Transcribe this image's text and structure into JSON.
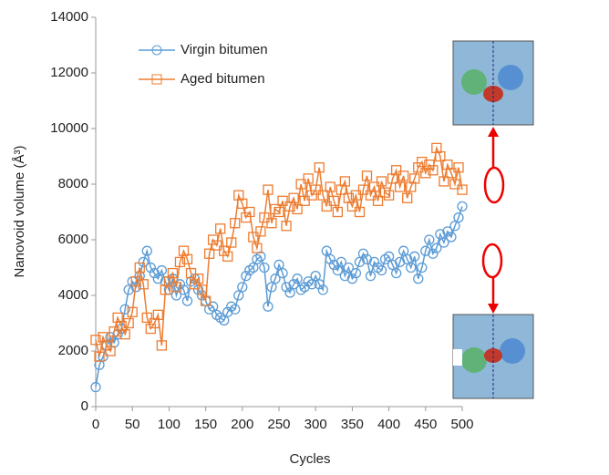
{
  "chart_data": {
    "type": "line",
    "xlabel": "Cycles",
    "ylabel": "Nanovoid volume (Å³)",
    "x": [
      0,
      5,
      10,
      15,
      20,
      25,
      30,
      35,
      40,
      45,
      50,
      55,
      60,
      65,
      70,
      75,
      80,
      85,
      90,
      95,
      100,
      105,
      110,
      115,
      120,
      125,
      130,
      135,
      140,
      145,
      150,
      155,
      160,
      165,
      170,
      175,
      180,
      185,
      190,
      195,
      200,
      205,
      210,
      215,
      220,
      225,
      230,
      235,
      240,
      245,
      250,
      255,
      260,
      265,
      270,
      275,
      280,
      285,
      290,
      295,
      300,
      305,
      310,
      315,
      320,
      325,
      330,
      335,
      340,
      345,
      350,
      355,
      360,
      365,
      370,
      375,
      380,
      385,
      390,
      395,
      400,
      405,
      410,
      415,
      420,
      425,
      430,
      435,
      440,
      445,
      450,
      455,
      460,
      465,
      470,
      475,
      480,
      485,
      490,
      495,
      500
    ],
    "series": [
      {
        "name": "Virgin bitumen",
        "color": "#5b9bd5",
        "marker": "circle",
        "values": [
          700,
          1500,
          1800,
          2200,
          2500,
          2300,
          2600,
          2800,
          3500,
          4200,
          4500,
          4300,
          4700,
          5200,
          5600,
          5000,
          4800,
          4600,
          4900,
          4500,
          4200,
          4600,
          4000,
          4400,
          4200,
          3800,
          4500,
          4600,
          4200,
          4000,
          3800,
          3500,
          3600,
          3300,
          3200,
          3100,
          3400,
          3600,
          3500,
          4000,
          4300,
          4700,
          4900,
          5000,
          5300,
          5400,
          5000,
          3600,
          4300,
          4600,
          5100,
          4800,
          4300,
          4100,
          4400,
          4600,
          4200,
          4300,
          4500,
          4400,
          4700,
          4400,
          4200,
          5600,
          5300,
          5100,
          4900,
          5200,
          4700,
          5000,
          4600,
          4800,
          5200,
          5500,
          5300,
          4700,
          5200,
          5000,
          4900,
          5300,
          5400,
          5100,
          4800,
          5200,
          5600,
          5300,
          5000,
          5400,
          4600,
          5000,
          5600,
          6000,
          5500,
          5700,
          6200,
          5900,
          6300,
          6100,
          6500,
          6800,
          7200
        ]
      },
      {
        "name": "Aged bitumen",
        "color": "#ed7d31",
        "marker": "square",
        "values": [
          2400,
          1800,
          2500,
          2200,
          2000,
          2700,
          3200,
          2900,
          2600,
          3000,
          3400,
          4500,
          5000,
          4400,
          3200,
          2800,
          3000,
          3300,
          2200,
          4200,
          4500,
          4800,
          4300,
          5200,
          5600,
          5300,
          4800,
          4400,
          4600,
          4200,
          3800,
          5500,
          6000,
          5800,
          6400,
          5600,
          5400,
          5900,
          6600,
          7600,
          7300,
          6800,
          7000,
          6100,
          5700,
          6300,
          6800,
          7800,
          6600,
          7100,
          7000,
          7400,
          6500,
          7200,
          7500,
          7100,
          8000,
          7400,
          8200,
          7600,
          7800,
          8600,
          7600,
          7200,
          7900,
          7400,
          7000,
          7800,
          8100,
          7500,
          7200,
          7600,
          7000,
          7800,
          8300,
          7600,
          7900,
          7400,
          8100,
          7700,
          7600,
          8200,
          8500,
          7900,
          8300,
          7500,
          7900,
          8200,
          8600,
          8800,
          8400,
          8700,
          8500,
          9300,
          9000,
          8100,
          8700,
          8400,
          8000,
          8600,
          7800
        ]
      }
    ],
    "xlim": [
      0,
      500
    ],
    "xticks": [
      0,
      50,
      100,
      150,
      200,
      250,
      300,
      350,
      400,
      450,
      500
    ],
    "ylim": [
      0,
      14000
    ],
    "yticks": [
      0,
      2000,
      4000,
      6000,
      8000,
      10000,
      12000,
      14000
    ],
    "legend": "upper left",
    "grid": false
  }
}
